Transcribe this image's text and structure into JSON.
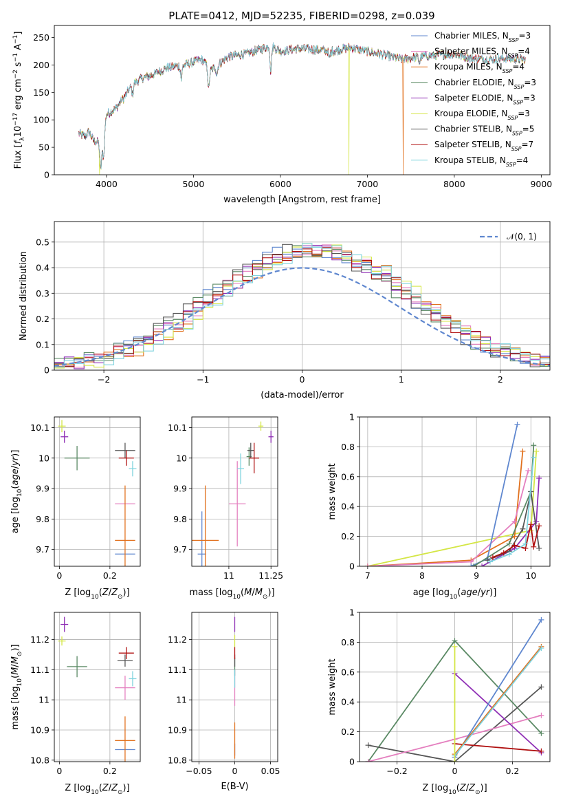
{
  "figure": {
    "title": "PLATE=0412, MJD=52235, FIBERID=0298, z=0.039"
  },
  "colors": {
    "Chabrier MILES": "#5f87cf",
    "Salpeter MILES": "#e47fbf",
    "Kroupa MILES": "#e1711e",
    "Chabrier ELODIE": "#5b8a65",
    "Salpeter ELODIE": "#8f2fb5",
    "Kroupa ELODIE": "#d4e645",
    "Chabrier STELIB": "#565656",
    "Salpeter STELIB": "#b01010",
    "Kroupa STELIB": "#7fd3de"
  },
  "chart_data": [
    {
      "type": "line",
      "id": "spectrum",
      "xlabel": "wavelength [Angstrom, rest frame]",
      "ylabel": "Flux [f_λ 10^-17 erg cm^-2 s^-1 A^-1]",
      "xlim": [
        3400,
        9100
      ],
      "ylim": [
        0,
        272
      ],
      "xticks": [
        4000,
        5000,
        6000,
        7000,
        8000,
        9000
      ],
      "yticks": [
        0,
        50,
        100,
        150,
        200,
        250
      ],
      "grid": false,
      "legend_position": "top-right",
      "legend": [
        "Chabrier MILES, N_SSP=3",
        "Salpeter MILES, N_SSP=4",
        "Kroupa MILES, N_SSP=4",
        "Chabrier ELODIE, N_SSP=3",
        "Salpeter ELODIE, N_SSP=3",
        "Kroupa ELODIE, N_SSP=3",
        "Chabrier STELIB, N_SSP=5",
        "Salpeter STELIB, N_SSP=7",
        "Kroupa STELIB, N_SSP=4"
      ],
      "continuum": {
        "x": [
          3680,
          3750,
          3800,
          3850,
          3900,
          3950,
          4000,
          4100,
          4200,
          4300,
          4400,
          4500,
          4700,
          4900,
          5100,
          5200,
          5400,
          5600,
          5800,
          5900,
          6000,
          6200,
          6400,
          6600,
          6800,
          7000,
          7200,
          7400,
          7600,
          7800,
          8000,
          8200,
          8400,
          8600,
          8800
        ],
        "y": [
          75,
          70,
          78,
          62,
          60,
          45,
          110,
          120,
          140,
          165,
          175,
          180,
          195,
          200,
          210,
          190,
          215,
          220,
          230,
          235,
          225,
          230,
          228,
          225,
          232,
          225,
          218,
          210,
          215,
          218,
          220,
          212,
          210,
          212,
          210
        ]
      },
      "absorption_features": [
        {
          "x": 3933,
          "depth": 40
        },
        {
          "x": 3968,
          "depth": 35
        },
        {
          "x": 4300,
          "depth": 20
        },
        {
          "x": 4861,
          "depth": 25
        },
        {
          "x": 5175,
          "depth": 40
        },
        {
          "x": 5270,
          "depth": 15
        },
        {
          "x": 5890,
          "depth": 45
        },
        {
          "x": 6563,
          "depth": 15
        },
        {
          "x": 7600,
          "depth": 10
        }
      ],
      "masked_drops": [
        {
          "series": "Kroupa ELODIE",
          "x": 3920
        },
        {
          "series": "Kroupa ELODIE",
          "x": 6790
        },
        {
          "series": "Kroupa MILES",
          "x": 7410
        }
      ]
    },
    {
      "type": "line",
      "id": "residuals",
      "xlabel": "(data-model)/error",
      "ylabel": "Normed distribution",
      "xlim": [
        -2.5,
        2.5
      ],
      "ylim": [
        0,
        0.58
      ],
      "xticks": [
        -2,
        -1,
        0,
        1,
        2
      ],
      "yticks": [
        0.0,
        0.1,
        0.2,
        0.3,
        0.4,
        0.5
      ],
      "grid": true,
      "legend_position": "top-right",
      "legend": [
        "𝒩(0, 1)"
      ],
      "normal_reference": {
        "mean": 0,
        "sigma": 1,
        "color": "#5f87cf"
      },
      "histogram_bin_width": 0.1
    },
    {
      "type": "scatter",
      "id": "age-vs-Z",
      "xlabel": "Z [log10(Z/Z⊙)]",
      "ylabel": "age [log10(age/yr)]",
      "xlim": [
        -0.02,
        0.32
      ],
      "ylim": [
        9.645,
        10.135
      ],
      "xticks": [
        0.0,
        0.2
      ],
      "yticks": [
        9.7,
        9.8,
        9.9,
        10.0,
        10.1
      ],
      "grid": true,
      "points": [
        {
          "series": "Chabrier MILES",
          "x": 0.26,
          "y": 9.685,
          "xerr": 0.04,
          "yerr": 0.0
        },
        {
          "series": "Salpeter MILES",
          "x": 0.26,
          "y": 9.85,
          "xerr": 0.04,
          "yerr": 0.0
        },
        {
          "series": "Kroupa MILES",
          "x": 0.26,
          "y": 9.73,
          "xerr": 0.04,
          "yerr": 0.18
        },
        {
          "series": "Chabrier ELODIE",
          "x": 0.07,
          "y": 10.0,
          "xerr": 0.05,
          "yerr": 0.04
        },
        {
          "series": "Salpeter ELODIE",
          "x": 0.02,
          "y": 10.07,
          "xerr": 0.015,
          "yerr": 0.02
        },
        {
          "series": "Kroupa ELODIE",
          "x": 0.01,
          "y": 10.105,
          "xerr": 0.015,
          "yerr": 0.02
        },
        {
          "series": "Chabrier STELIB",
          "x": 0.26,
          "y": 10.025,
          "xerr": 0.04,
          "yerr": 0.025
        },
        {
          "series": "Salpeter STELIB",
          "x": 0.265,
          "y": 10.0,
          "xerr": 0.03,
          "yerr": 0.025
        },
        {
          "series": "Kroupa STELIB",
          "x": 0.29,
          "y": 9.965,
          "xerr": 0.015,
          "yerr": 0.025
        }
      ]
    },
    {
      "type": "scatter",
      "id": "age-vs-mass",
      "xlabel": "mass [log10(M/M⊙)]",
      "ylabel": "",
      "xlim": [
        10.78,
        11.29
      ],
      "ylim": [
        9.645,
        10.135
      ],
      "xticks": [
        11.0,
        11.25
      ],
      "yticks": [
        9.7,
        9.8,
        9.9,
        10.0,
        10.1
      ],
      "grid": true,
      "points": [
        {
          "series": "Chabrier MILES",
          "x": 10.84,
          "y": 9.685,
          "xerr": 0.025,
          "yerr": 0.14
        },
        {
          "series": "Salpeter MILES",
          "x": 11.05,
          "y": 9.85,
          "xerr": 0.05,
          "yerr": 0.14
        },
        {
          "series": "Kroupa MILES",
          "x": 10.86,
          "y": 9.73,
          "xerr": 0.08,
          "yerr": 0.18
        },
        {
          "series": "Chabrier ELODIE",
          "x": 11.12,
          "y": 10.005,
          "xerr": 0.015,
          "yerr": 0.03
        },
        {
          "series": "Salpeter ELODIE",
          "x": 11.25,
          "y": 10.07,
          "xerr": 0.015,
          "yerr": 0.02
        },
        {
          "series": "Kroupa ELODIE",
          "x": 11.19,
          "y": 10.105,
          "xerr": 0.015,
          "yerr": 0.015
        },
        {
          "series": "Chabrier STELIB",
          "x": 11.13,
          "y": 10.025,
          "xerr": 0.02,
          "yerr": 0.025
        },
        {
          "series": "Salpeter STELIB",
          "x": 11.15,
          "y": 10.0,
          "xerr": 0.03,
          "yerr": 0.05
        },
        {
          "series": "Kroupa STELIB",
          "x": 11.07,
          "y": 9.965,
          "xerr": 0.02,
          "yerr": 0.05
        }
      ]
    },
    {
      "type": "line",
      "id": "weight-vs-age",
      "xlabel": "age [log10(age/yr)]",
      "ylabel": "mass weight",
      "xlim": [
        6.85,
        10.35
      ],
      "ylim": [
        0,
        1.0
      ],
      "xticks": [
        7,
        8,
        9,
        10
      ],
      "yticks": [
        0.0,
        0.2,
        0.4,
        0.6,
        0.8,
        1.0
      ],
      "grid": true,
      "series": [
        {
          "name": "Kroupa ELODIE",
          "x": [
            7.0,
            10.0,
            10.1
          ],
          "y": [
            0.0,
            0.24,
            0.77
          ]
        },
        {
          "name": "Kroupa MILES",
          "x": [
            7.0,
            8.9,
            9.7,
            9.85
          ],
          "y": [
            0.0,
            0.04,
            0.2,
            0.77
          ]
        },
        {
          "name": "Salpeter MILES",
          "x": [
            7.0,
            8.9,
            9.7,
            9.95
          ],
          "y": [
            0.0,
            0.03,
            0.3,
            0.64
          ]
        },
        {
          "name": "Chabrier MILES",
          "x": [
            8.9,
            9.2,
            9.75
          ],
          "y": [
            0.0,
            0.05,
            0.95
          ]
        },
        {
          "name": "Chabrier ELODIE",
          "x": [
            8.95,
            9.6,
            10.0,
            10.05
          ],
          "y": [
            0.0,
            0.15,
            0.5,
            0.81
          ]
        },
        {
          "name": "Salpeter ELODIE",
          "x": [
            9.1,
            9.7,
            10.1,
            10.15
          ],
          "y": [
            0.0,
            0.12,
            0.3,
            0.59
          ]
        },
        {
          "name": "Chabrier STELIB",
          "x": [
            9.2,
            9.6,
            9.85,
            10.0,
            10.15
          ],
          "y": [
            0.04,
            0.1,
            0.25,
            0.5,
            0.12
          ]
        },
        {
          "name": "Salpeter STELIB",
          "x": [
            9.3,
            9.5,
            9.7,
            9.9,
            10.0,
            10.05,
            10.15
          ],
          "y": [
            0.06,
            0.09,
            0.14,
            0.12,
            0.28,
            0.13,
            0.27
          ]
        },
        {
          "name": "Kroupa STELIB",
          "x": [
            9.25,
            9.6,
            9.9,
            10.05
          ],
          "y": [
            0.03,
            0.08,
            0.15,
            0.73
          ]
        }
      ]
    },
    {
      "type": "scatter",
      "id": "mass-vs-Z",
      "xlabel": "Z [log10(Z/Z⊙)]",
      "ylabel": "mass [log10(M/M⊙)]",
      "xlim": [
        -0.02,
        0.32
      ],
      "ylim": [
        10.795,
        11.29
      ],
      "xticks": [
        0.0,
        0.2
      ],
      "yticks": [
        10.8,
        10.9,
        11.0,
        11.1,
        11.2
      ],
      "grid": true,
      "points": [
        {
          "series": "Chabrier MILES",
          "x": 0.26,
          "y": 10.835,
          "xerr": 0.04,
          "yerr": 0.0
        },
        {
          "series": "Salpeter MILES",
          "x": 0.26,
          "y": 11.04,
          "xerr": 0.04,
          "yerr": 0.04
        },
        {
          "series": "Kroupa MILES",
          "x": 0.26,
          "y": 10.865,
          "xerr": 0.04,
          "yerr": 0.08
        },
        {
          "series": "Chabrier ELODIE",
          "x": 0.07,
          "y": 11.11,
          "xerr": 0.04,
          "yerr": 0.035
        },
        {
          "series": "Salpeter ELODIE",
          "x": 0.02,
          "y": 11.25,
          "xerr": 0.015,
          "yerr": 0.025
        },
        {
          "series": "Kroupa ELODIE",
          "x": 0.01,
          "y": 11.195,
          "xerr": 0.015,
          "yerr": 0.015
        },
        {
          "series": "Chabrier STELIB",
          "x": 0.26,
          "y": 11.13,
          "xerr": 0.03,
          "yerr": 0.02
        },
        {
          "series": "Salpeter STELIB",
          "x": 0.265,
          "y": 11.155,
          "xerr": 0.03,
          "yerr": 0.02
        },
        {
          "series": "Kroupa STELIB",
          "x": 0.29,
          "y": 11.07,
          "xerr": 0.015,
          "yerr": 0.025
        }
      ]
    },
    {
      "type": "scatter",
      "id": "mass-vs-EBV",
      "xlabel": "E(B-V)",
      "ylabel": "",
      "xlim": [
        -0.06,
        0.06
      ],
      "ylim": [
        10.795,
        11.29
      ],
      "xticks": [
        -0.05,
        0.0,
        0.05
      ],
      "yticks": [
        10.8,
        10.9,
        11.0,
        11.1,
        11.2
      ],
      "grid": true,
      "points": [
        {
          "series": "Chabrier MILES",
          "x": 0.0,
          "y": 10.835,
          "xerr": 0.0,
          "yerr": 0.02
        },
        {
          "series": "Salpeter MILES",
          "x": 0.0,
          "y": 11.04,
          "xerr": 0.0,
          "yerr": 0.06
        },
        {
          "series": "Kroupa MILES",
          "x": 0.0,
          "y": 10.865,
          "xerr": 0.0,
          "yerr": 0.06
        },
        {
          "series": "Chabrier ELODIE",
          "x": 0.0,
          "y": 11.11,
          "xerr": 0.0,
          "yerr": 0.03
        },
        {
          "series": "Salpeter ELODIE",
          "x": 0.0,
          "y": 11.25,
          "xerr": 0.0,
          "yerr": 0.025
        },
        {
          "series": "Kroupa ELODIE",
          "x": 0.0,
          "y": 11.195,
          "xerr": 0.0,
          "yerr": 0.02
        },
        {
          "series": "Chabrier STELIB",
          "x": 0.0,
          "y": 11.13,
          "xerr": 0.0,
          "yerr": 0.02
        },
        {
          "series": "Salpeter STELIB",
          "x": 0.0,
          "y": 11.155,
          "xerr": 0.0,
          "yerr": 0.02
        },
        {
          "series": "Kroupa STELIB",
          "x": 0.0,
          "y": 11.07,
          "xerr": 0.0,
          "yerr": 0.03
        }
      ]
    },
    {
      "type": "line",
      "id": "weight-vs-Z",
      "xlabel": "Z [log10(Z/Z⊙)]",
      "ylabel": "mass weight",
      "xlim": [
        -0.33,
        0.33
      ],
      "ylim": [
        0,
        1.0
      ],
      "xticks": [
        -0.2,
        0.0,
        0.2
      ],
      "yticks": [
        0.0,
        0.2,
        0.4,
        0.6,
        0.8,
        1.0
      ],
      "grid": true,
      "series": [
        {
          "name": "Chabrier ELODIE",
          "x": [
            -0.3,
            0.0,
            0.3
          ],
          "y": [
            0.0,
            0.81,
            0.19
          ]
        },
        {
          "name": "Chabrier STELIB",
          "x": [
            -0.3,
            0.0,
            0.3
          ],
          "y": [
            0.11,
            0.0,
            0.5
          ]
        },
        {
          "name": "Salpeter MILES",
          "x": [
            -0.3,
            0.0,
            0.3
          ],
          "y": [
            0.0,
            0.15,
            0.31
          ]
        },
        {
          "name": "Salpeter ELODIE",
          "x": [
            0.0,
            0.3
          ],
          "y": [
            0.59,
            0.06
          ]
        },
        {
          "name": "Salpeter STELIB",
          "x": [
            0.0,
            0.3
          ],
          "y": [
            0.12,
            0.07
          ]
        },
        {
          "name": "Chabrier MILES",
          "x": [
            0.0,
            0.3
          ],
          "y": [
            0.03,
            0.95
          ]
        },
        {
          "name": "Kroupa MILES",
          "x": [
            0.0,
            0.3
          ],
          "y": [
            0.05,
            0.77
          ]
        },
        {
          "name": "Kroupa STELIB",
          "x": [
            0.0,
            0.3
          ],
          "y": [
            0.04,
            0.76
          ]
        },
        {
          "name": "Kroupa ELODIE",
          "x": [
            0.0,
            0.0
          ],
          "y": [
            0.0,
            0.77
          ]
        }
      ]
    }
  ]
}
